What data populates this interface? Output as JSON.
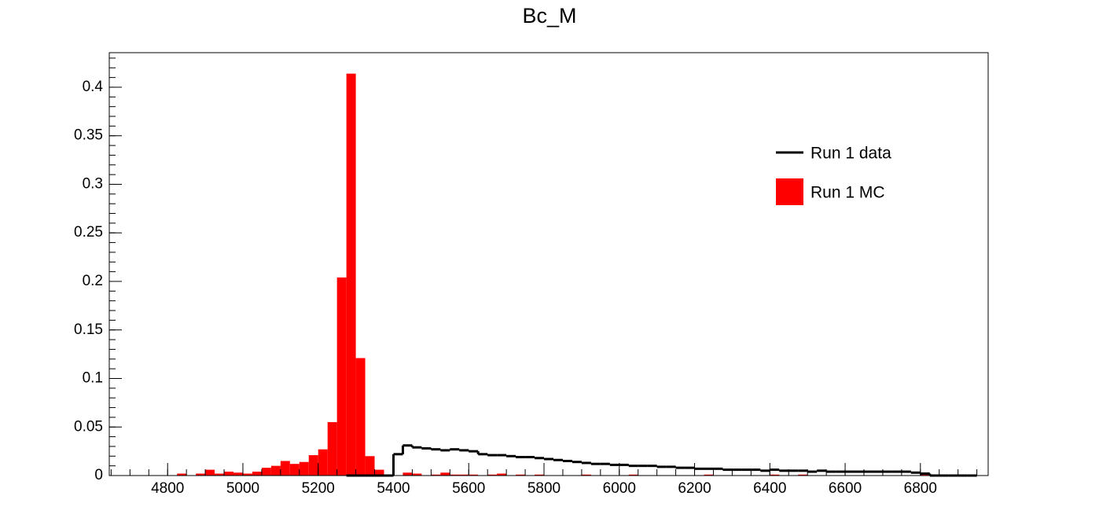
{
  "chart_data": {
    "type": "histogram",
    "title": "Bc_M",
    "bins": [
      4800,
      4825,
      4850,
      4875,
      4900,
      4925,
      4950,
      4975,
      5000,
      5025,
      5050,
      5075,
      5100,
      5125,
      5150,
      5175,
      5200,
      5225,
      5250,
      5275,
      5300,
      5325,
      5350,
      5375,
      5400,
      5425,
      5450,
      5475,
      5500,
      5525,
      5550,
      5575,
      5600,
      5625,
      5650,
      5675,
      5700,
      5725,
      5750,
      5775,
      5800,
      5825,
      5850,
      5875,
      5900,
      5925,
      5950,
      5975,
      6000,
      6025,
      6050,
      6075,
      6100,
      6125,
      6150,
      6175,
      6200,
      6225,
      6250,
      6275,
      6300,
      6325,
      6350,
      6375,
      6400,
      6425,
      6450,
      6475,
      6500,
      6525,
      6550,
      6575,
      6600,
      6625,
      6650,
      6675,
      6700,
      6725,
      6750,
      6775,
      6800,
      6825,
      6850,
      6875,
      6900,
      6925,
      6950
    ],
    "series": [
      {
        "name": "Run 1 data",
        "color": "#000000",
        "style": "line",
        "values": [
          null,
          null,
          null,
          null,
          null,
          null,
          null,
          null,
          null,
          null,
          null,
          null,
          null,
          null,
          null,
          null,
          null,
          null,
          null,
          0,
          0,
          0,
          0,
          0,
          0.022,
          0.031,
          0.029,
          0.028,
          0.027,
          0.026,
          0.027,
          0.026,
          0.025,
          0.022,
          0.021,
          0.021,
          0.02,
          0.019,
          0.019,
          0.018,
          0.017,
          0.016,
          0.015,
          0.014,
          0.013,
          0.012,
          0.012,
          0.011,
          0.011,
          0.01,
          0.01,
          0.01,
          0.009,
          0.009,
          0.008,
          0.008,
          0.007,
          0.007,
          0.007,
          0.006,
          0.006,
          0.006,
          0.006,
          0.005,
          0.006,
          0.005,
          0.005,
          0.005,
          0.004,
          0.005,
          0.004,
          0.004,
          0.004,
          0.004,
          0.004,
          0.004,
          0.004,
          0.004,
          0.004,
          0.003,
          0.002,
          0,
          0,
          0,
          0,
          0
        ]
      },
      {
        "name": "Run 1 MC",
        "color": "#ff0000",
        "style": "fill",
        "values": [
          0,
          0.002,
          0,
          0.002,
          0.006,
          0.002,
          0.004,
          0.003,
          0.002,
          0.004,
          0.008,
          0.01,
          0.015,
          0.012,
          0.014,
          0.021,
          0.027,
          0.055,
          0.204,
          0.414,
          0.121,
          0.02,
          0.006,
          0.001,
          0,
          0.003,
          0.002,
          0,
          0.001,
          0.003,
          0.001,
          0.001,
          0.001,
          0,
          0.001,
          0.002,
          0,
          0.001,
          0,
          0.001,
          0,
          0,
          0,
          0,
          0.001,
          0,
          0,
          0,
          0,
          0.001,
          0,
          0,
          0,
          0,
          0,
          0,
          0,
          0.001,
          0,
          0,
          0,
          0,
          0,
          0,
          0.001,
          0,
          0,
          0.001,
          0,
          0,
          0,
          0,
          0,
          0,
          0,
          0,
          0,
          0,
          0,
          0,
          0.002,
          0,
          0,
          0,
          0,
          0
        ]
      }
    ],
    "xlim": [
      4645,
      6980
    ],
    "xticks": [
      4800,
      5000,
      5200,
      5400,
      5600,
      5800,
      6000,
      6200,
      6400,
      6600,
      6800
    ],
    "ylim": [
      0,
      0.4356
    ],
    "yticks": [
      0,
      0.05,
      0.1,
      0.15,
      0.2,
      0.25,
      0.3,
      0.35,
      0.4
    ],
    "legend": "upper right"
  }
}
